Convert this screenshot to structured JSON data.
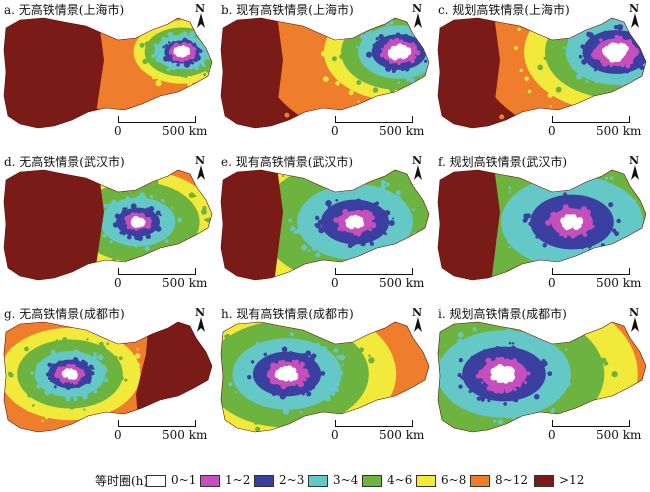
{
  "panels": [
    {
      "title": "a. 无高铁情景(上海市)",
      "hub": "east",
      "scenario": "none"
    },
    {
      "title": "b. 现有高铁情景(上海市)",
      "hub": "east",
      "scenario": "current"
    },
    {
      "title": "c. 规划高铁情景(上海市)",
      "hub": "east",
      "scenario": "planned"
    },
    {
      "title": "d. 无高铁情景(武汉市)",
      "hub": "center",
      "scenario": "none"
    },
    {
      "title": "e. 现有高铁情景(武汉市)",
      "hub": "center",
      "scenario": "current"
    },
    {
      "title": "f. 规划高铁情景(武汉市)",
      "hub": "center",
      "scenario": "planned"
    },
    {
      "title": "g. 无高铁情景(成都市)",
      "hub": "west",
      "scenario": "none"
    },
    {
      "title": "h. 现有高铁情景(成都市)",
      "hub": "west",
      "scenario": "current"
    },
    {
      "title": "i. 规划高铁情景(成都市)",
      "hub": "west",
      "scenario": "planned"
    }
  ],
  "north_label": "N",
  "scale": {
    "zero": "0",
    "end": "500 km"
  },
  "legend": {
    "title": "等时圈(h)",
    "items": [
      {
        "label": "0~1",
        "color": "#ffffff"
      },
      {
        "label": "1~2",
        "color": "#c64fbd"
      },
      {
        "label": "2~3",
        "color": "#3b3fa0"
      },
      {
        "label": "3~4",
        "color": "#64c8c6"
      },
      {
        "label": "4~6",
        "color": "#6db33f"
      },
      {
        "label": "6~8",
        "color": "#f2ea3a"
      },
      {
        "label": "8~12",
        "color": "#ee7d2c"
      },
      {
        "label": ">12",
        "color": "#7a1b17"
      }
    ]
  }
}
